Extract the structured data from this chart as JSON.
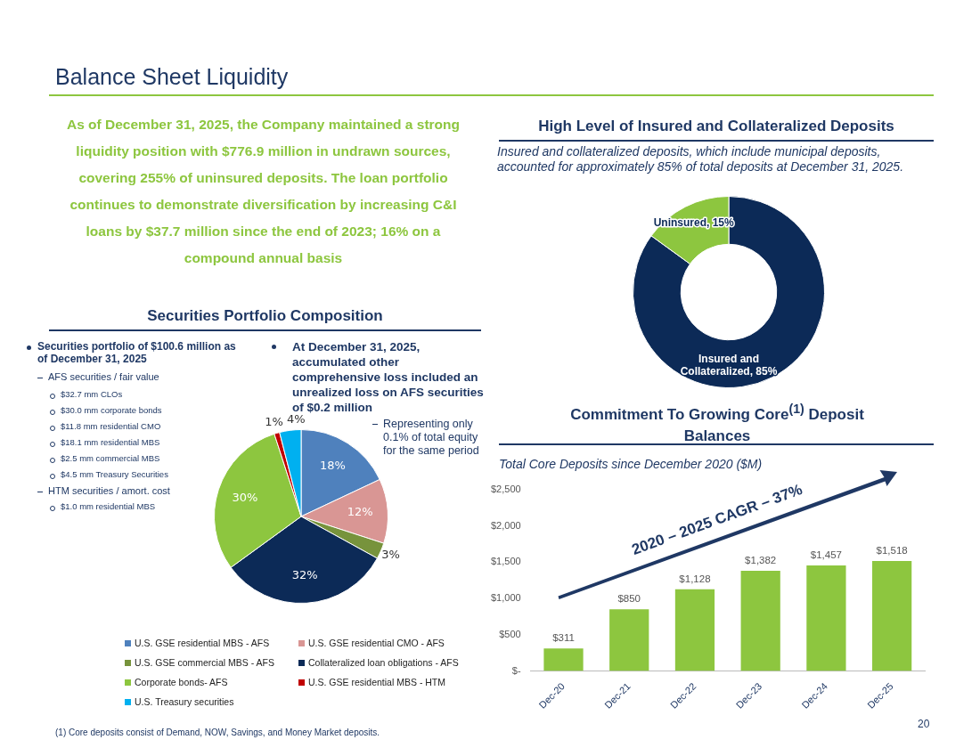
{
  "chart_data": [
    {
      "type": "other",
      "title": "Balance Sheet Liquidity",
      "annotations": [
        "As of December 31, 2025, the Company maintained a strong liquidity position with $776.9 million in undrawn sources, covering 255% of uninsured deposits. The loan portfolio continues to demonstrate diversification by increasing C&I loans by $37.7 million since the end of 2023; 16% on a compound annual basis",
        "(1) Core deposits consist of Demand, NOW, Savings, and Money Market deposits.",
        "20"
      ]
    },
    {
      "type": "pie",
      "title": "Securities Portfolio Composition",
      "categories": [
        "U.S. GSE residential MBS - AFS",
        "U.S. GSE residential CMO - AFS",
        "U.S. GSE commercial MBS -  AFS",
        "Collateralized loan obligations - AFS",
        "Corporate bonds- AFS",
        "U.S. GSE residential MBS - HTM",
        "U.S. Treasury securities"
      ],
      "values": [
        18,
        12,
        3,
        32,
        30,
        1,
        4
      ],
      "value_labels": [
        "18%",
        "12%",
        "3%",
        "32%",
        "30%",
        "1%",
        "4%"
      ],
      "colors": [
        "#4f81bd",
        "#d99694",
        "#77933c",
        "#0c2a57",
        "#8dc63f",
        "#c00000",
        "#00b0f0"
      ],
      "legend": "bottom",
      "annotations": [
        "Securities portfolio of $100.6 million as of December 31, 2025",
        "AFS securities / fair value",
        "$32.7 mm CLOs",
        "$30.0 mm corporate bonds",
        "$11.8 mm residential CMO",
        "$18.1 mm residential MBS",
        "$2.5 mm commercial MBS",
        "$4.5 mm Treasury Securities",
        "HTM securities / amort. cost",
        "$1.0 mm residential MBS",
        "At December 31, 2025, accumulated other comprehensive loss included an unrealized loss on AFS securities of $0.2 million",
        "Representing only 0.1% of total equity for the same period"
      ]
    },
    {
      "type": "donut",
      "title": "High Level of Insured and Collateralized Deposits",
      "subtitle": "Insured and collateralized deposits, which include municipal deposits, accounted for approximately 85% of total deposits at December 31, 2025.",
      "categories": [
        "Insured and Collateralized",
        "Uninsured"
      ],
      "values": [
        85,
        15
      ],
      "value_labels": [
        "85%",
        "15%"
      ],
      "colors": [
        "#0c2a57",
        "#8dc63f"
      ]
    },
    {
      "type": "bar",
      "title": "Commitment To Growing Core$^{(1)}$ Deposit Balances",
      "subtitle": "Total Core Deposits since December 2020 ($M)",
      "categories": [
        "Dec-20",
        "Dec-21",
        "Dec-22",
        "Dec-23",
        "Dec-24",
        "Dec-25"
      ],
      "values": [
        311,
        850,
        1128,
        1382,
        1457,
        1518
      ],
      "value_labels": [
        "$311",
        "$850",
        "$1,128",
        "$1,382",
        "$1,457",
        "$1,518"
      ],
      "color": "#8dc63f",
      "ylim": [
        0,
        2500
      ],
      "yticks": [
        {
          "value": 0,
          "label": "$-"
        },
        {
          "value": 500,
          "label": "$500"
        },
        {
          "value": 1000,
          "label": "$1,000"
        },
        {
          "value": 1500,
          "label": "$1,500"
        },
        {
          "value": 2000,
          "label": "$2,000"
        },
        {
          "value": 2500,
          "label": "$2,500"
        }
      ],
      "grid": false,
      "annotations": [
        "2020 – 2025 CAGR – 37%"
      ]
    }
  ]
}
